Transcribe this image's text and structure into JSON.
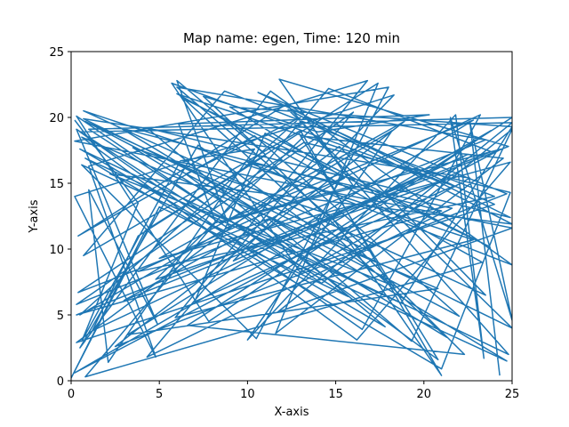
{
  "chart_data": {
    "type": "line",
    "title": "Map name: egen, Time: 120 min",
    "xlabel": "X-axis",
    "ylabel": "Y-axis",
    "xlim": [
      0,
      25
    ],
    "ylim": [
      0,
      25
    ],
    "xticks": [
      "0",
      "5",
      "10",
      "15",
      "20",
      "25"
    ],
    "yticks": [
      "0",
      "5",
      "10",
      "15",
      "20",
      "25"
    ],
    "grid": false,
    "legend": "none",
    "line_color": "#1f77b4",
    "series": [
      {
        "x": [
          0.2,
          3.8,
          0.6,
          6.2,
          10.4,
          2.1,
          1.0,
          4.9,
          0.3,
          9.0,
          6.0,
          11.0,
          7.5,
          14.0,
          20.3,
          6.1,
          8.2,
          16.0,
          11.8,
          24.8,
          3.0,
          15.5,
          9.0,
          25.0,
          18.7,
          0.8,
          21.0,
          24.9,
          13.2,
          0.4,
          11.2,
          19.3,
          25.0,
          14.2,
          0.3,
          7.8,
          23.8,
          0.2,
          24.4,
          8.4,
          22.8,
          3.2,
          20.8,
          0.6,
          16.2,
          24.9,
          5.0,
          18.9,
          2.5,
          24.7,
          10.6,
          24.9,
          4.3,
          17.8,
          0.5,
          24.8,
          12.2,
          0.4,
          10.4,
          22.0,
          0.8,
          17.0,
          6.0,
          23.5,
          0.3,
          16.0,
          4.3,
          21.6,
          10.0,
          25.0,
          11.3,
          0.5,
          7.2,
          18.3,
          2.2,
          25.0,
          12.3,
          25.0,
          0.7,
          22.6,
          13.0,
          5.7,
          21.7,
          7.0,
          11.0,
          23.7,
          6.4,
          21.3,
          3.5,
          14.7,
          21.0,
          13.0,
          0.7,
          8.7,
          24.0,
          3.8,
          23.2,
          16.5,
          0.5,
          25.0,
          11.7,
          25.0,
          0.2,
          18.0,
          10.5,
          0.6,
          24.7,
          2.8,
          21.0,
          0.3,
          23.8,
          14.6,
          0.8,
          23.3,
          6.0,
          21.0,
          4.8,
          14.0,
          24.0,
          0.3,
          15.2,
          23.5,
          0.7,
          22.8,
          5.9,
          16.8,
          1.0,
          4.8,
          0.2,
          18.3,
          9.2,
          22.5,
          1.2,
          3.8,
          11.0,
          22.3,
          6.6,
          25.0,
          1.0,
          15.7,
          5.0,
          0.0,
          4.2,
          17.4,
          11.6,
          24.5,
          13.0,
          20.8,
          6.5,
          13.0,
          0.5,
          18.2,
          10.0,
          21.8,
          23.4,
          21.5,
          25.0,
          22.6,
          24.3
        ],
        "y": [
          19.8,
          13.5,
          3.0,
          16.7,
          17.6,
          1.4,
          14.5,
          4.3,
          19.1,
          11.5,
          22.8,
          17.2,
          21.6,
          18.9,
          20.2,
          19.5,
          12.0,
          14.8,
          22.9,
          17.8,
          6.1,
          15.4,
          20.8,
          19.3,
          5.9,
          16.9,
          0.9,
          14.3,
          18.1,
          6.7,
          12.3,
          3.0,
          19.1,
          7.4,
          20.1,
          4.5,
          19.0,
          0.6,
          17.6,
          12.0,
          19.8,
          3.5,
          7.0,
          18.5,
          3.1,
          16.6,
          9.3,
          19.7,
          2.6,
          14.2,
          21.9,
          12.4,
          19.2,
          4.1,
          17.6,
          2.0,
          21.0,
          11.0,
          18.6,
          4.9,
          19.7,
          9.8,
          22.3,
          18.3,
          5.8,
          20.4,
          1.8,
          13.1,
          16.6,
          8.8,
          22.0,
          2.5,
          17.9,
          7.2,
          15.7,
          11.9,
          20.6,
          4.0,
          19.9,
          15.4,
          8.2,
          22.6,
          14.8,
          6.0,
          18.8,
          10.2,
          21.4,
          3.3,
          17.7,
          12.6,
          0.4,
          19.0,
          9.5,
          22.0,
          14.0,
          8.3,
          20.2,
          3.9,
          18.9,
          19.6,
          5.2,
          11.6,
          18.2,
          22.3,
          3.2,
          16.4,
          1.5,
          19.2,
          12.9,
          5.0,
          17.4,
          22.2,
          0.3,
          9.0,
          21.8,
          15.1,
          7.7,
          19.6,
          13.4,
          2.9,
          17.8,
          6.5,
          20.5,
          10.7,
          4.8,
          22.8,
          16.3,
          1.8,
          14.0,
          21.7,
          9.1,
          17.2,
          3.8,
          11.0,
          17.1,
          2.0,
          4.2,
          20.0,
          19.1,
          6.4,
          13.2,
          0.2,
          11.4,
          22.6,
          3.6,
          16.9,
          18.6,
          1.6,
          15.7,
          20.0,
          5.0,
          19.0,
          3.1,
          20.2,
          1.7,
          20.0,
          4.6,
          19.7,
          0.4
        ]
      }
    ]
  }
}
